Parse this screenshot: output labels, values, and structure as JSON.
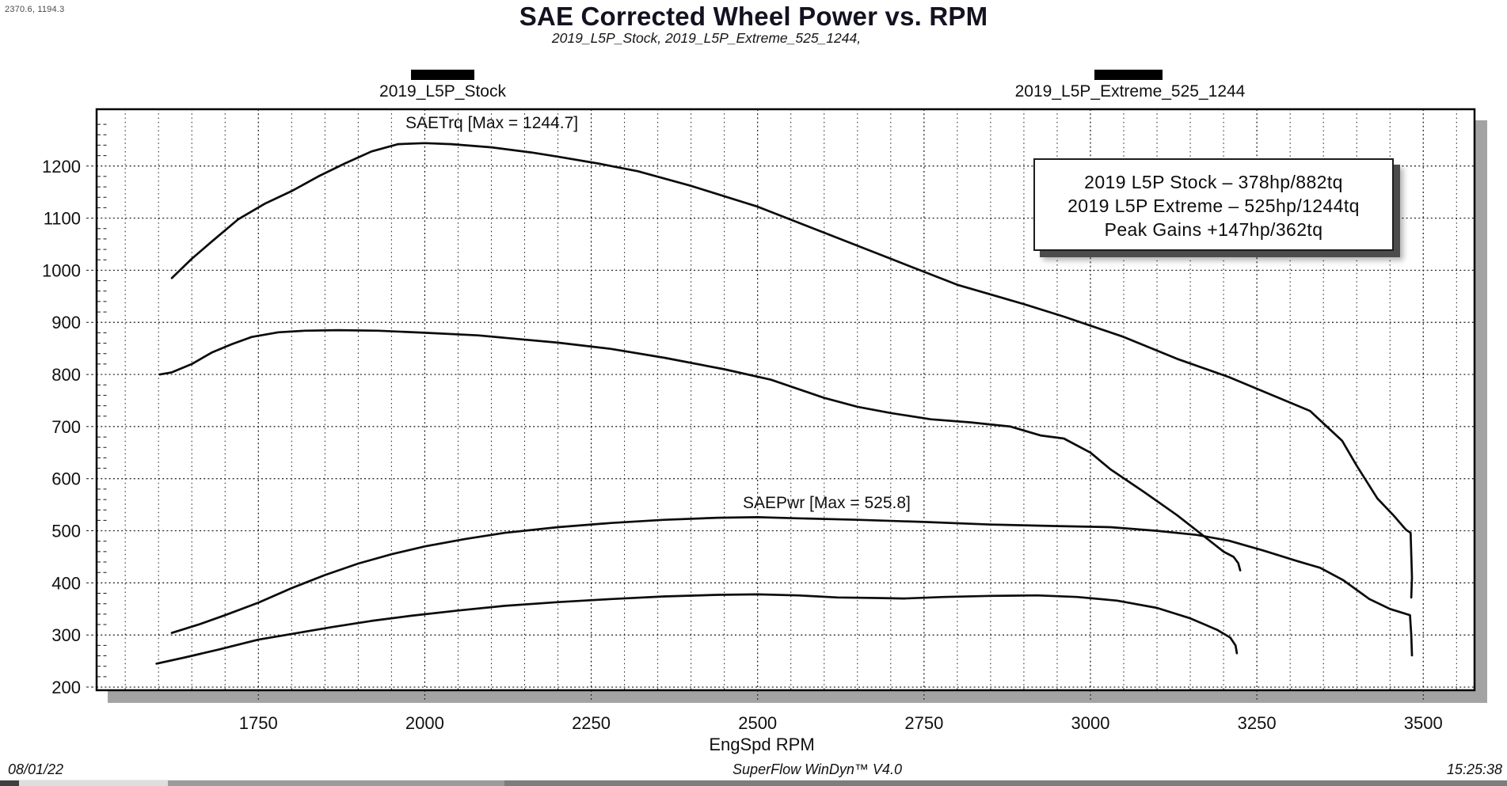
{
  "cursor_readout": "2370.6, 1194.3",
  "header": {
    "title": "SAE Corrected Wheel Power vs. RPM",
    "subtitle": "2019_L5P_Stock, 2019_L5P_Extreme_525_1244,"
  },
  "legend": {
    "marker_color": "#000000",
    "items": [
      {
        "label": "2019_L5P_Stock"
      },
      {
        "label": "2019_L5P_Extreme_525_1244"
      }
    ]
  },
  "annotations": {
    "torque_max": "SAETrq [Max = 1244.7]",
    "power_max": "SAEPwr [Max = 525.8]"
  },
  "info_box": {
    "lines": [
      "2019 L5P Stock – 378hp/882tq",
      "2019 L5P Extreme – 525hp/1244tq",
      "Peak Gains +147hp/362tq"
    ]
  },
  "footer": {
    "date": "08/01/22",
    "app": "SuperFlow WinDyn™ V4.0",
    "time": "15:25:38"
  },
  "chart_data": {
    "type": "line",
    "title": "SAE Corrected Wheel Power vs. RPM",
    "xlabel": "EngSpd RPM",
    "ylabel": "",
    "x_range": [
      1507,
      3577
    ],
    "y_range": [
      194,
      1309
    ],
    "x_ticks": [
      1750,
      2000,
      2250,
      2500,
      2750,
      3000,
      3250,
      3500
    ],
    "y_ticks": [
      200,
      300,
      400,
      500,
      600,
      700,
      800,
      900,
      1000,
      1100,
      1200
    ],
    "x_minor_step": 50,
    "y_minor_step": 20,
    "grid": "dashed",
    "curve_color": "#0b0b0b",
    "legend_position": "top",
    "series": [
      {
        "id": "extreme-torque",
        "name": "2019_L5P_Extreme_525_1244 SAETrq",
        "peak": 1244.7,
        "points": [
          [
            1620,
            985
          ],
          [
            1650,
            1022
          ],
          [
            1680,
            1055
          ],
          [
            1720,
            1098
          ],
          [
            1760,
            1128
          ],
          [
            1800,
            1152
          ],
          [
            1840,
            1180
          ],
          [
            1880,
            1205
          ],
          [
            1920,
            1228
          ],
          [
            1960,
            1242
          ],
          [
            2000,
            1244
          ],
          [
            2040,
            1242
          ],
          [
            2100,
            1236
          ],
          [
            2160,
            1226
          ],
          [
            2200,
            1218
          ],
          [
            2260,
            1205
          ],
          [
            2320,
            1190
          ],
          [
            2400,
            1162
          ],
          [
            2500,
            1122
          ],
          [
            2600,
            1072
          ],
          [
            2700,
            1022
          ],
          [
            2800,
            972
          ],
          [
            2900,
            935
          ],
          [
            2960,
            911
          ],
          [
            3050,
            872
          ],
          [
            3130,
            830
          ],
          [
            3208,
            795
          ],
          [
            3270,
            762
          ],
          [
            3330,
            730
          ],
          [
            3378,
            673
          ],
          [
            3400,
            625
          ],
          [
            3431,
            562
          ],
          [
            3455,
            530
          ],
          [
            3474,
            502
          ],
          [
            3481,
            496
          ],
          [
            3482,
            455
          ],
          [
            3483,
            410
          ],
          [
            3482,
            372
          ]
        ]
      },
      {
        "id": "stock-torque",
        "name": "2019_L5P_Stock SAETrq",
        "peak": 882,
        "points": [
          [
            1602,
            800
          ],
          [
            1620,
            804
          ],
          [
            1650,
            820
          ],
          [
            1680,
            842
          ],
          [
            1710,
            858
          ],
          [
            1740,
            872
          ],
          [
            1780,
            881
          ],
          [
            1820,
            884
          ],
          [
            1870,
            885
          ],
          [
            1930,
            884
          ],
          [
            2000,
            880
          ],
          [
            2080,
            875
          ],
          [
            2140,
            868
          ],
          [
            2200,
            861
          ],
          [
            2280,
            849
          ],
          [
            2360,
            832
          ],
          [
            2450,
            810
          ],
          [
            2520,
            790
          ],
          [
            2600,
            755
          ],
          [
            2650,
            738
          ],
          [
            2700,
            726
          ],
          [
            2760,
            714
          ],
          [
            2820,
            708
          ],
          [
            2880,
            700
          ],
          [
            2925,
            683
          ],
          [
            2960,
            677
          ],
          [
            3000,
            650
          ],
          [
            3030,
            618
          ],
          [
            3080,
            575
          ],
          [
            3130,
            530
          ],
          [
            3170,
            490
          ],
          [
            3200,
            460
          ],
          [
            3215,
            450
          ],
          [
            3222,
            438
          ],
          [
            3225,
            424
          ]
        ]
      },
      {
        "id": "extreme-power",
        "name": "2019_L5P_Extreme_525_1244 SAEPwr",
        "peak": 525.8,
        "points": [
          [
            1620,
            304
          ],
          [
            1660,
            320
          ],
          [
            1700,
            338
          ],
          [
            1750,
            362
          ],
          [
            1800,
            390
          ],
          [
            1850,
            415
          ],
          [
            1900,
            437
          ],
          [
            1950,
            455
          ],
          [
            2000,
            470
          ],
          [
            2060,
            484
          ],
          [
            2120,
            496
          ],
          [
            2200,
            507
          ],
          [
            2280,
            515
          ],
          [
            2360,
            521
          ],
          [
            2440,
            525
          ],
          [
            2500,
            526
          ],
          [
            2560,
            524
          ],
          [
            2650,
            521
          ],
          [
            2750,
            517
          ],
          [
            2850,
            512
          ],
          [
            2950,
            509
          ],
          [
            3030,
            507
          ],
          [
            3100,
            500
          ],
          [
            3160,
            492
          ],
          [
            3208,
            481
          ],
          [
            3260,
            462
          ],
          [
            3310,
            442
          ],
          [
            3345,
            429
          ],
          [
            3380,
            405
          ],
          [
            3419,
            369
          ],
          [
            3450,
            350
          ],
          [
            3470,
            342
          ],
          [
            3480,
            338
          ],
          [
            3482,
            300
          ],
          [
            3483,
            261
          ]
        ]
      },
      {
        "id": "stock-power",
        "name": "2019_L5P_Stock SAEPwr",
        "peak": 378,
        "points": [
          [
            1597,
            245
          ],
          [
            1640,
            257
          ],
          [
            1690,
            272
          ],
          [
            1750,
            291
          ],
          [
            1800,
            302
          ],
          [
            1860,
            315
          ],
          [
            1920,
            327
          ],
          [
            1980,
            337
          ],
          [
            2050,
            347
          ],
          [
            2120,
            356
          ],
          [
            2200,
            363
          ],
          [
            2280,
            369
          ],
          [
            2360,
            374
          ],
          [
            2440,
            377
          ],
          [
            2500,
            378
          ],
          [
            2560,
            376
          ],
          [
            2620,
            372
          ],
          [
            2680,
            371
          ],
          [
            2720,
            370
          ],
          [
            2780,
            373
          ],
          [
            2850,
            375
          ],
          [
            2920,
            376
          ],
          [
            2980,
            373
          ],
          [
            3040,
            366
          ],
          [
            3100,
            352
          ],
          [
            3150,
            332
          ],
          [
            3190,
            310
          ],
          [
            3210,
            295
          ],
          [
            3218,
            280
          ],
          [
            3220,
            265
          ]
        ]
      }
    ]
  }
}
